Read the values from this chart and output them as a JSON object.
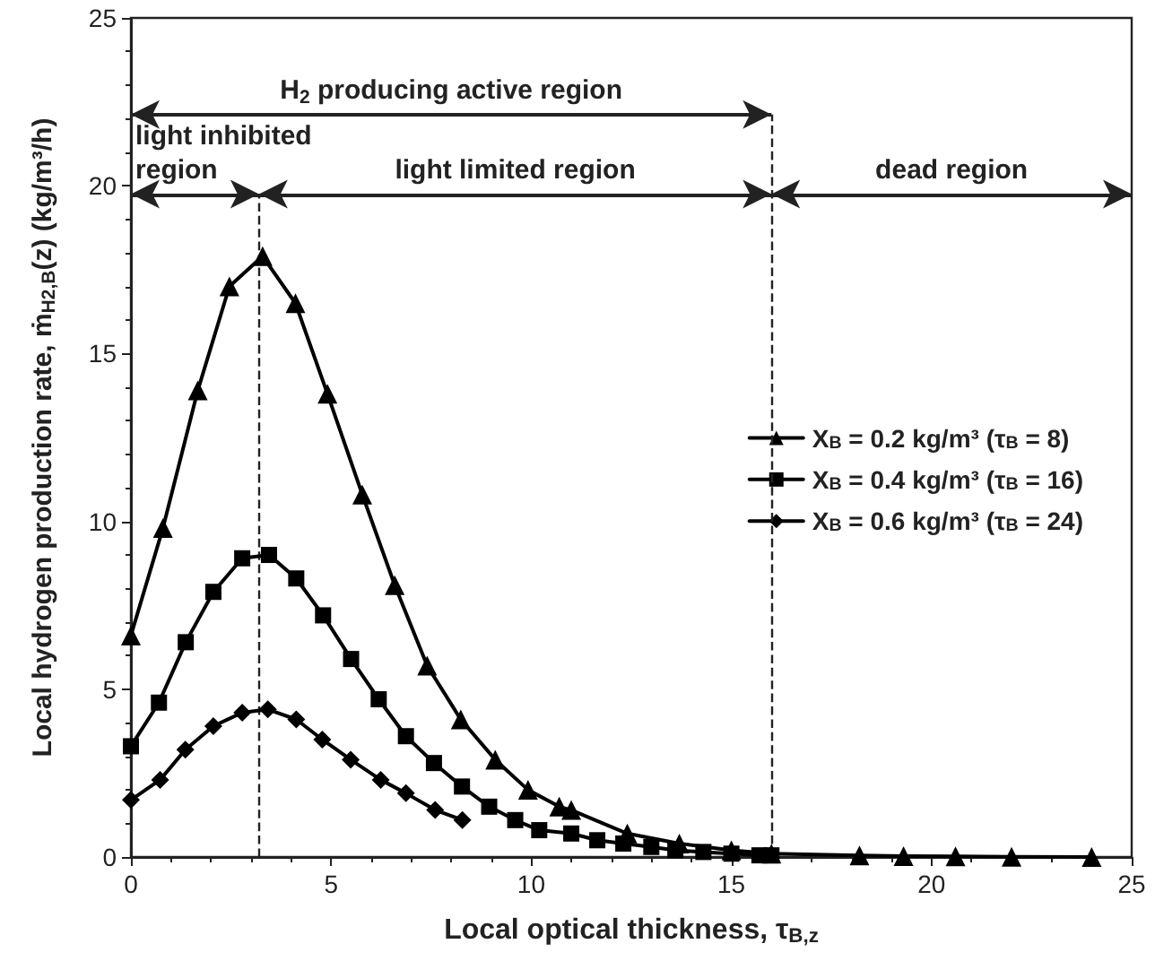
{
  "chart_data": {
    "type": "line",
    "xlabel": "Local optical thickness, τ$_{B,z}$",
    "ylabel": "Local hydrogen production rate, ṁ$_{H2,B}$(z) (kg/m³/h)",
    "xlim": [
      0,
      25
    ],
    "xticks": [
      0,
      5,
      10,
      15,
      20,
      25
    ],
    "ylim": [
      0,
      25
    ],
    "yticks": [
      0,
      5,
      10,
      15,
      20,
      25
    ],
    "grid": false,
    "legend": "right",
    "line_style": "solid",
    "series": [
      {
        "name": "X$_{B}$ = 0.2 kg/m³ (τ$_{B}$ = 8)",
        "color": "#000000",
        "marker": "triangle",
        "x": [
          0,
          0.8,
          1.67,
          2.46,
          3.29,
          4.11,
          4.91,
          5.78,
          6.59,
          7.4,
          8.24,
          9.1,
          9.92,
          10.7,
          11.0,
          12.4,
          13.7,
          15.0,
          16.0,
          18.2,
          19.3,
          20.6,
          22.0,
          24.0
        ],
        "values": [
          6.6,
          9.8,
          13.9,
          17.0,
          17.9,
          16.5,
          13.8,
          10.8,
          8.1,
          5.7,
          4.1,
          2.9,
          2.0,
          1.5,
          1.4,
          0.7,
          0.4,
          0.2,
          0.1,
          0.05,
          0.03,
          0.02,
          0.01,
          0
        ]
      },
      {
        "name": "X$_{B}$ = 0.4 kg/m³ (τ$_{B}$ = 16)",
        "color": "#000000",
        "marker": "square",
        "x": [
          0,
          0.7,
          1.37,
          2.06,
          2.78,
          3.45,
          4.13,
          4.8,
          5.5,
          6.19,
          6.87,
          7.57,
          8.27,
          8.95,
          9.6,
          10.2,
          11.0,
          11.65,
          12.3,
          13.0,
          13.6,
          14.3,
          15.0,
          15.7,
          16.0
        ],
        "values": [
          3.3,
          4.6,
          6.4,
          7.9,
          8.9,
          9.0,
          8.3,
          7.2,
          5.9,
          4.7,
          3.6,
          2.8,
          2.1,
          1.5,
          1.1,
          0.8,
          0.7,
          0.5,
          0.4,
          0.3,
          0.2,
          0.15,
          0.1,
          0.05,
          0.05
        ]
      },
      {
        "name": "X$_{B}$ = 0.6 kg/m³ (τ$_{B}$ = 24)",
        "color": "#000000",
        "marker": "diamond",
        "x": [
          0,
          0.73,
          1.36,
          2.06,
          2.78,
          3.42,
          4.13,
          4.78,
          5.49,
          6.24,
          6.87,
          7.6,
          8.28
        ],
        "values": [
          1.7,
          2.3,
          3.2,
          3.9,
          4.3,
          4.4,
          4.1,
          3.5,
          2.9,
          2.3,
          1.9,
          1.4,
          1.1
        ]
      }
    ],
    "annotations": [
      "H$_{2}$ producing active region",
      "light inhibited\nregion",
      "light limited region",
      "dead region"
    ],
    "ref_lines": [
      {
        "axis": "x",
        "value": 3.2,
        "line_style": "dashed"
      },
      {
        "axis": "x",
        "value": 16,
        "line_style": "dashed"
      }
    ]
  }
}
